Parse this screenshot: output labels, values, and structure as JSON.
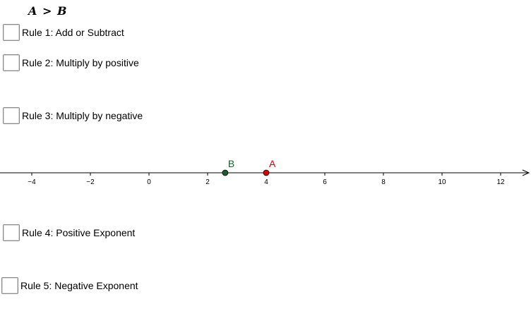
{
  "title": "A > B",
  "rules": [
    {
      "label": "Rule 1: Add or Subtract",
      "checked": false
    },
    {
      "label": "Rule 2: Multiply by positive",
      "checked": false
    },
    {
      "label": "Rule 3: Multiply by negative",
      "checked": false
    },
    {
      "label": "Rule 4: Positive Exponent",
      "checked": false
    },
    {
      "label": "Rule 5: Negative Exponent",
      "checked": false
    }
  ],
  "number_line": {
    "ticks": [
      -4,
      -2,
      0,
      2,
      4,
      6,
      8,
      10,
      12
    ],
    "tick_labels": [
      "−4",
      "−2",
      "0",
      "2",
      "4",
      "6",
      "8",
      "10",
      "12"
    ],
    "points": [
      {
        "name": "B",
        "value": 2.6,
        "color": "#1a5e2a"
      },
      {
        "name": "A",
        "value": 4.0,
        "color": "#e00000"
      }
    ]
  }
}
